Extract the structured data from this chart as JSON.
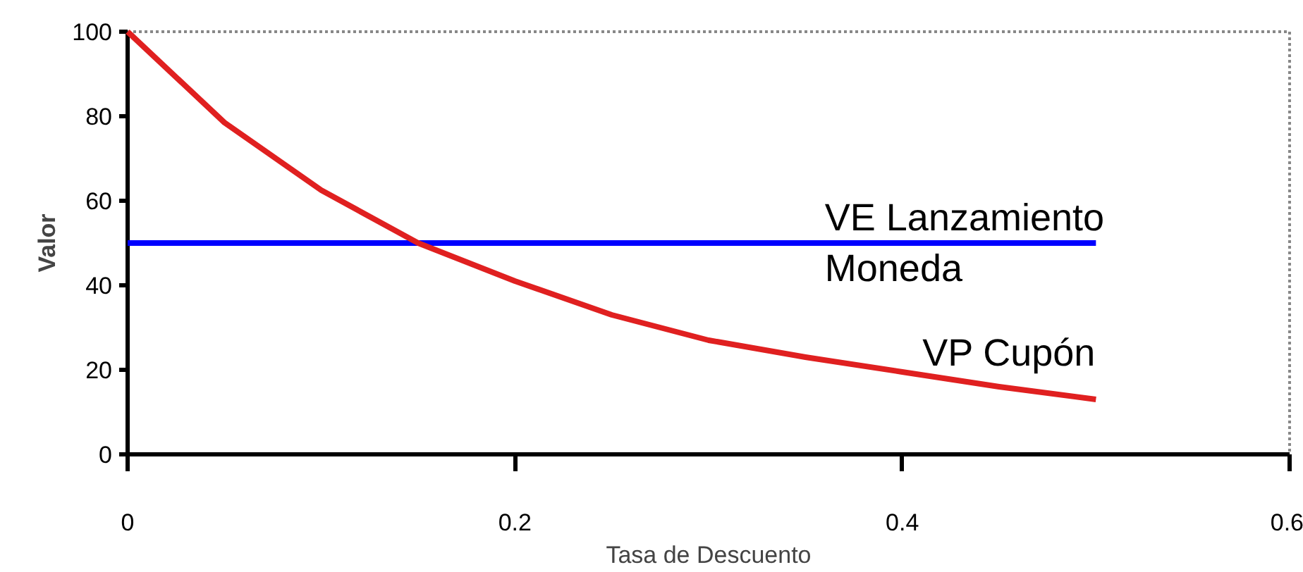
{
  "chart_data": {
    "type": "line",
    "xlabel": "Tasa de Descuento",
    "ylabel": "Valor",
    "x": [
      0,
      0.05,
      0.1,
      0.15,
      0.2,
      0.25,
      0.3,
      0.35,
      0.4,
      0.45,
      0.5
    ],
    "series": [
      {
        "name": "VE Lanzamiento Moneda",
        "color": "#0000ff",
        "values": [
          50,
          50,
          50,
          50,
          50,
          50,
          50,
          50,
          50,
          50,
          50
        ]
      },
      {
        "name": "VP Cupón",
        "color": "#e02020",
        "values": [
          100,
          78.5,
          62.5,
          50,
          41,
          33,
          27,
          23,
          19.5,
          16,
          13
        ]
      }
    ],
    "xlim": [
      0,
      0.6
    ],
    "xticks": [
      0,
      0.2,
      0.4,
      0.6
    ],
    "ylim": [
      0,
      100
    ],
    "yticks": [
      0,
      20,
      40,
      60,
      80,
      100
    ],
    "grid": false,
    "marker": "none",
    "line_style": "solid"
  }
}
